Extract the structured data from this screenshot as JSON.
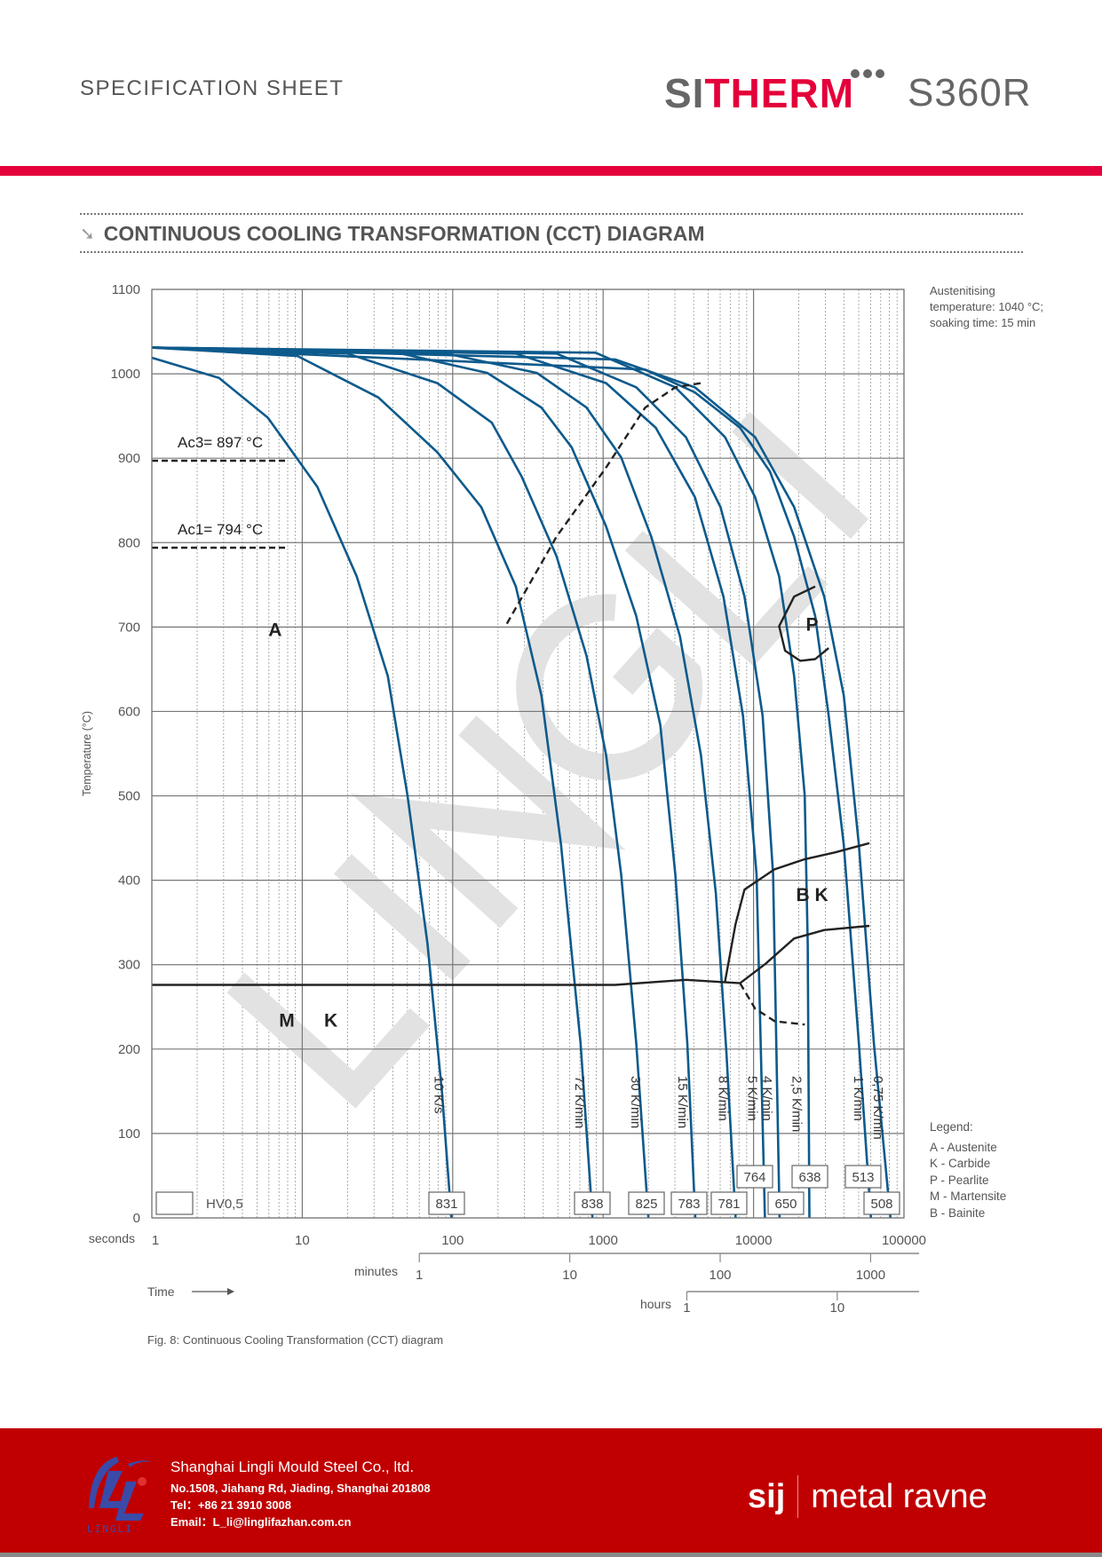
{
  "header": {
    "doc_type": "SPECIFICATION SHEET",
    "brand_part1": "SI",
    "brand_part2": "THERM",
    "model": "S360R",
    "brand_color": "#e4003a"
  },
  "section": {
    "title": "CONTINUOUS COOLING TRANSFORMATION (CCT) DIAGRAM",
    "icon": "arrow-down-right-icon"
  },
  "notes": {
    "austenitising": "Austenitising temperature: 1040 °C; soaking time: 15 min"
  },
  "legend": {
    "title": "Legend:",
    "items": [
      "A - Austenite",
      "K - Carbide",
      "P - Pearlite",
      "M - Martensite",
      "B - Bainite"
    ]
  },
  "caption": "Fig. 8: Continuous Cooling Transformation (CCT) diagram",
  "watermark": "LINGLI",
  "chart_data": {
    "type": "line",
    "title": "Continuous Cooling Transformation (CCT) diagram",
    "ylabel": "Temperature (°C)",
    "xlabel": "Time",
    "xscale": "log",
    "xlim": [
      1,
      100000
    ],
    "ylim": [
      0,
      1100
    ],
    "grid": true,
    "yticks": [
      0,
      100,
      200,
      300,
      400,
      500,
      600,
      700,
      800,
      900,
      1000,
      1100
    ],
    "xticks_seconds": {
      "label": "seconds",
      "ticks": [
        "1",
        "10",
        "100",
        "1000",
        "10000",
        "100000"
      ]
    },
    "xticks_minutes": {
      "label": "minutes",
      "ticks": [
        "1",
        "10",
        "100",
        "1000"
      ]
    },
    "xticks_hours": {
      "label": "hours",
      "ticks": [
        "1",
        "10"
      ]
    },
    "time_label": "Time",
    "reference_lines": [
      {
        "label": "Ac3= 897 °C",
        "value": 897
      },
      {
        "label": "Ac1= 794 °C",
        "value": 794
      }
    ],
    "hardness_legend": "HV0,5",
    "series": [
      {
        "name": "10 K/s",
        "hardness": "831",
        "points": [
          [
            1,
            1019
          ],
          [
            2.8,
            995
          ],
          [
            5.9,
            948
          ],
          [
            12.6,
            866
          ],
          [
            23,
            760
          ],
          [
            37,
            642
          ],
          [
            50,
            501
          ],
          [
            68,
            325
          ],
          [
            85,
            148
          ],
          [
            98,
            0
          ]
        ]
      },
      {
        "name": "72 K/min",
        "hardness": "838",
        "points": [
          [
            1,
            1031
          ],
          [
            9.3,
            1021
          ],
          [
            32,
            972
          ],
          [
            79,
            907
          ],
          [
            155,
            842
          ],
          [
            263,
            748
          ],
          [
            389,
            619
          ],
          [
            525,
            442
          ],
          [
            708,
            207
          ],
          [
            850,
            0
          ]
        ]
      },
      {
        "name": "30 K/min",
        "hardness": "825",
        "points": [
          [
            1,
            1031
          ],
          [
            20,
            1024
          ],
          [
            79,
            989
          ],
          [
            182,
            942
          ],
          [
            288,
            878
          ],
          [
            490,
            784
          ],
          [
            776,
            666
          ],
          [
            1047,
            548
          ],
          [
            1318,
            407
          ],
          [
            1660,
            207
          ],
          [
            2000,
            0
          ]
        ]
      },
      {
        "name": "15 K/min",
        "hardness": "783",
        "points": [
          [
            1,
            1031
          ],
          [
            43,
            1025
          ],
          [
            170,
            1001
          ],
          [
            389,
            960
          ],
          [
            617,
            913
          ],
          [
            1047,
            819
          ],
          [
            1660,
            713
          ],
          [
            2400,
            584
          ],
          [
            3020,
            407
          ],
          [
            3630,
            207
          ],
          [
            4100,
            0
          ]
        ]
      },
      {
        "name": "8 K/min",
        "hardness": "781",
        "points": [
          [
            1,
            1031
          ],
          [
            91,
            1024
          ],
          [
            363,
            1001
          ],
          [
            776,
            960
          ],
          [
            1318,
            901
          ],
          [
            2090,
            807
          ],
          [
            3240,
            689
          ],
          [
            4470,
            548
          ],
          [
            5620,
            384
          ],
          [
            6610,
            195
          ],
          [
            7600,
            0
          ]
        ]
      },
      {
        "name": "5 K/min",
        "hardness": "764",
        "points": [
          [
            1,
            1031
          ],
          [
            263,
            1024
          ],
          [
            1047,
            989
          ],
          [
            2240,
            936
          ],
          [
            4070,
            854
          ],
          [
            6310,
            736
          ],
          [
            8510,
            595
          ],
          [
            10470,
            407
          ],
          [
            11900,
            0
          ]
        ]
      },
      {
        "name": "4 K/min",
        "hardness": "650",
        "points": [
          [
            1,
            1031
          ],
          [
            490,
            1024
          ],
          [
            1660,
            984
          ],
          [
            3550,
            925
          ],
          [
            6030,
            842
          ],
          [
            8710,
            736
          ],
          [
            11480,
            595
          ],
          [
            13490,
            407
          ],
          [
            14900,
            0
          ]
        ]
      },
      {
        "name": "2,5 K/min",
        "hardness": "638",
        "points": [
          [
            1,
            1031
          ],
          [
            890,
            1025
          ],
          [
            3020,
            984
          ],
          [
            6460,
            925
          ],
          [
            10230,
            854
          ],
          [
            14790,
            760
          ],
          [
            18620,
            642
          ],
          [
            21880,
            501
          ],
          [
            22900,
            325
          ],
          [
            23500,
            0
          ]
        ]
      },
      {
        "name": "1 K/min",
        "hardness": "513",
        "points": [
          [
            1,
            1031
          ],
          [
            1900,
            1005
          ],
          [
            4070,
            978
          ],
          [
            8130,
            936
          ],
          [
            12880,
            884
          ],
          [
            18620,
            807
          ],
          [
            25700,
            713
          ],
          [
            31600,
            595
          ],
          [
            39800,
            442
          ],
          [
            50100,
            207
          ],
          [
            60300,
            0
          ]
        ]
      },
      {
        "name": "0,75 K/min",
        "hardness": "508",
        "points": [
          [
            1,
            1031
          ],
          [
            1200,
            1017
          ],
          [
            4070,
            984
          ],
          [
            10230,
            925
          ],
          [
            18620,
            842
          ],
          [
            29500,
            736
          ],
          [
            39800,
            619
          ],
          [
            50100,
            442
          ],
          [
            63100,
            207
          ],
          [
            81300,
            0
          ]
        ]
      }
    ],
    "transformation_lines": [
      {
        "name": "pearlite-start",
        "style": "dashed",
        "points": [
          [
            229,
            704
          ],
          [
            490,
            807
          ],
          [
            1047,
            889
          ],
          [
            1905,
            960
          ],
          [
            3020,
            984
          ],
          [
            4470,
            989
          ]
        ]
      },
      {
        "name": "pearlite-region",
        "style": "solid",
        "points": [
          [
            25700,
            748
          ],
          [
            18620,
            736
          ],
          [
            14790,
            701
          ],
          [
            16200,
            672
          ],
          [
            20400,
            660
          ],
          [
            25700,
            662
          ],
          [
            31600,
            675
          ]
        ]
      },
      {
        "name": "martensite-start",
        "style": "solid",
        "points": [
          [
            1,
            276
          ],
          [
            1200,
            276
          ],
          [
            3550,
            282
          ],
          [
            8130,
            278
          ]
        ]
      },
      {
        "name": "martensite-start-tail",
        "style": "dashed",
        "points": [
          [
            8130,
            278
          ],
          [
            10230,
            248
          ],
          [
            13800,
            233
          ],
          [
            21900,
            229
          ]
        ]
      },
      {
        "name": "bainite-start",
        "style": "solid",
        "points": [
          [
            6460,
            280
          ],
          [
            7590,
            348
          ],
          [
            8710,
            389
          ],
          [
            13800,
            413
          ],
          [
            21900,
            425
          ],
          [
            34700,
            433
          ],
          [
            58900,
            444
          ]
        ]
      },
      {
        "name": "bainite-finish",
        "style": "solid",
        "points": [
          [
            8130,
            278
          ],
          [
            12000,
            301
          ],
          [
            18620,
            331
          ],
          [
            29500,
            341
          ],
          [
            58900,
            346
          ]
        ]
      }
    ],
    "region_labels": [
      {
        "text": "A",
        "t": 6.6,
        "T": 698
      },
      {
        "text": "M",
        "t": 7.9,
        "T": 235
      },
      {
        "text": "K",
        "t": 15.5,
        "T": 235
      },
      {
        "text": "B K",
        "t": 24500,
        "T": 384
      },
      {
        "text": "P",
        "t": 24500,
        "T": 704
      }
    ],
    "colors": {
      "curve": "#0d5a8c",
      "transformation": "#222222",
      "grid": "#777777"
    }
  },
  "footer": {
    "company": "Shanghai Lingli Mould Steel Co., ltd.",
    "address": "No.1508, Jiahang Rd, Jiading, Shanghai 201808",
    "tel": "Tel：+86 21 3910 3008",
    "email": "Email：L_li@linglifazhan.com.cn",
    "logo_text": "LINGLI",
    "partner_short": "sij",
    "partner_name": "metal ravne",
    "color": "#c00000"
  }
}
